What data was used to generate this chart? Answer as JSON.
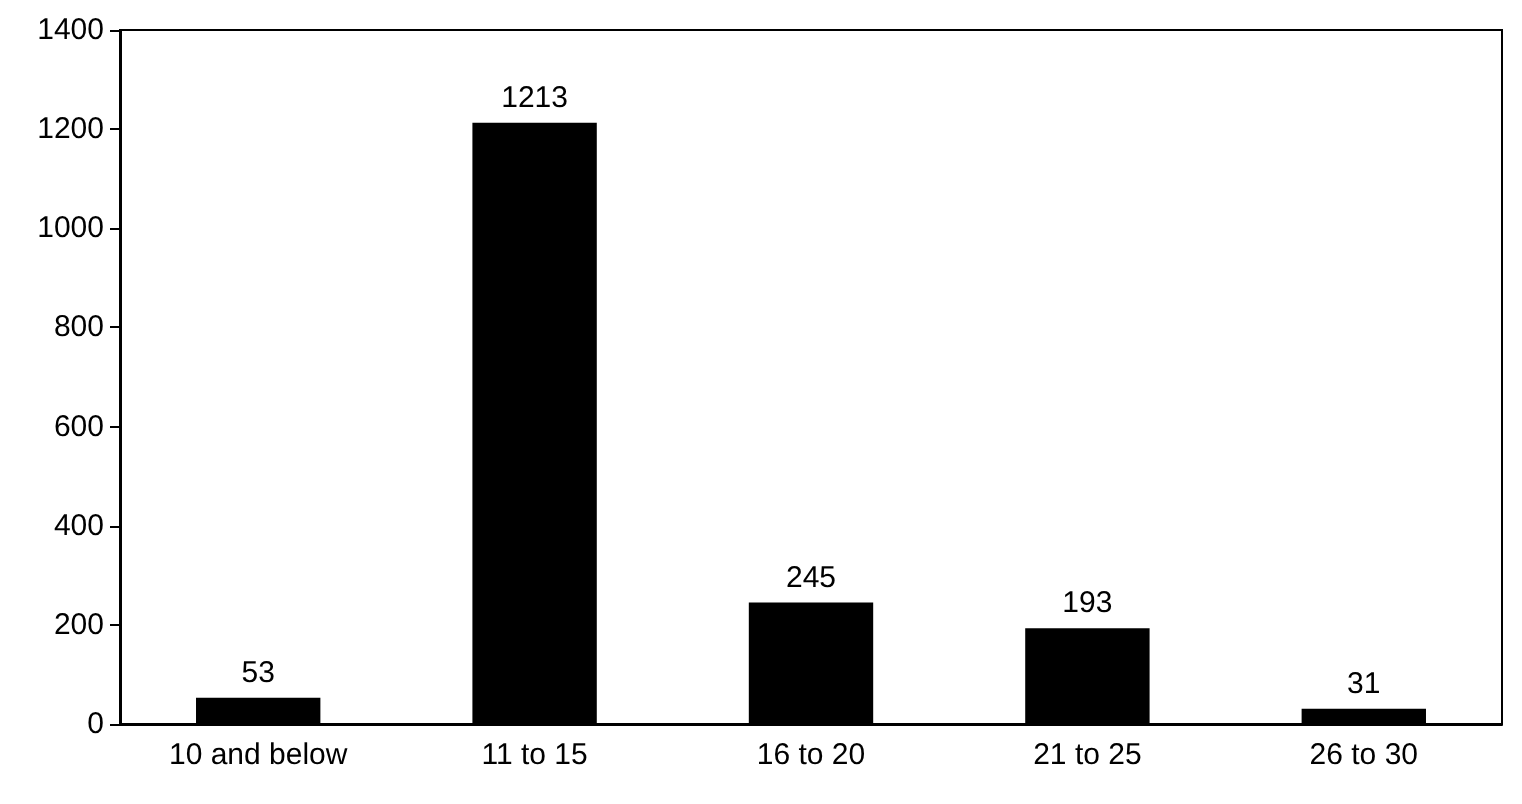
{
  "chart_data": {
    "type": "bar",
    "categories": [
      "10 and below",
      "11 to 15",
      "16 to 20",
      "21 to 25",
      "26 to 30"
    ],
    "values": [
      53,
      1213,
      245,
      193,
      31
    ],
    "color": "#000000",
    "ylim": [
      0,
      1400
    ],
    "yticks": [
      0,
      200,
      400,
      600,
      800,
      1000,
      1200,
      1400
    ],
    "data_labels": true,
    "grid": false
  }
}
